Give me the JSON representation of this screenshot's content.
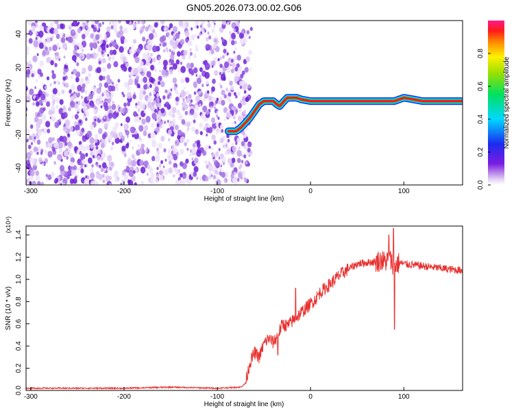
{
  "figure": {
    "title": "GN05.2026.073.00.02.G06"
  },
  "chart_data": [
    {
      "type": "heatmap",
      "title": "GN05.2026.073.00.02.G06",
      "xlabel": "Height of straight line (km)",
      "ylabel": "Frequency (Hz)",
      "xlim": [
        -305,
        163
      ],
      "ylim": [
        -50,
        48
      ],
      "xticks": [
        -300,
        -200,
        -100,
        0,
        100
      ],
      "xtick_labels": [
        "-300",
        "-200",
        "-100",
        "0",
        "100"
      ],
      "yticks": [
        -40,
        -20,
        0,
        20,
        40
      ],
      "ytick_labels": [
        "-40",
        "-20",
        "0",
        "20",
        "40"
      ],
      "noise_region_x": [
        -305,
        -65
      ],
      "ridge": {
        "x": [
          -88,
          -80,
          -75,
          -70,
          -65,
          -60,
          -55,
          -50,
          -45,
          -40,
          -36,
          -33,
          -30,
          -25,
          -20,
          -15,
          -10,
          0,
          20,
          50,
          70,
          80,
          90,
          100,
          110,
          120,
          163
        ],
        "y": [
          -18,
          -18,
          -16,
          -13,
          -10,
          -6,
          -2,
          0,
          0,
          0,
          -2,
          -3,
          -1,
          2,
          2,
          2,
          1,
          0,
          0,
          0,
          0,
          0,
          0,
          2,
          1,
          0,
          0
        ]
      },
      "colorbar": {
        "label": "Normalized spectral amplitude",
        "range": [
          0,
          1
        ],
        "ticks": [
          0.0,
          0.2,
          0.4,
          0.6,
          0.8
        ],
        "tick_labels": [
          "0.0",
          "0.2",
          "0.4",
          "0.6",
          "0.8"
        ]
      },
      "grid": false
    },
    {
      "type": "line",
      "title": "",
      "xlabel": "Height of straight line (km)",
      "ylabel": "SNR (10 * v/v)",
      "ylabel_multiplier": "(x10⁴)",
      "xlim": [
        -305,
        163
      ],
      "ylim": [
        0,
        1.48
      ],
      "xticks": [
        -300,
        -200,
        -100,
        0,
        100
      ],
      "xtick_labels": [
        "-300",
        "-200",
        "-100",
        "0",
        "100"
      ],
      "yticks": [
        0.0,
        0.2,
        0.4,
        0.6,
        0.8,
        1.0,
        1.2,
        1.4
      ],
      "ytick_labels": [
        "0.0",
        "0.2",
        "0.4",
        "0.6",
        "0.8",
        "1.0",
        "1.2",
        "1.4"
      ],
      "color": "#e8312f",
      "series": [
        {
          "x": [
            -305,
            -250,
            -200,
            -150,
            -100,
            -75,
            -70,
            -65,
            -60,
            -55,
            -50,
            -45,
            -40,
            -35,
            -30,
            -25,
            -20,
            -15,
            -10,
            -5,
            0,
            5,
            10,
            20,
            30,
            40,
            50,
            60,
            70,
            75,
            80,
            85,
            90,
            95,
            100,
            110,
            120,
            130,
            140,
            150,
            163
          ],
          "values": [
            0.02,
            0.02,
            0.02,
            0.03,
            0.02,
            0.03,
            0.06,
            0.25,
            0.34,
            0.3,
            0.42,
            0.47,
            0.43,
            0.5,
            0.6,
            0.58,
            0.62,
            0.66,
            0.7,
            0.74,
            0.78,
            0.82,
            0.88,
            0.95,
            1.03,
            1.09,
            1.14,
            1.15,
            1.16,
            1.17,
            1.16,
            1.18,
            1.12,
            1.15,
            1.14,
            1.13,
            1.12,
            1.11,
            1.1,
            1.09,
            1.08
          ]
        }
      ],
      "grid": false
    }
  ]
}
